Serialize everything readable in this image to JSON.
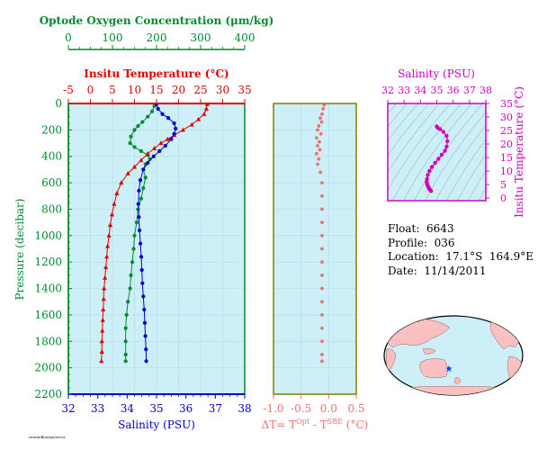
{
  "info": {
    "float": "Float:  6643",
    "profile": "Profile:  036",
    "location": "Location:  17.1°S  164.9°E",
    "date": "Date:  11/14/2011"
  },
  "colors": {
    "oxygen": "#008a2e",
    "temperature": "#e00000",
    "salinity": "#0000d0",
    "delta_t": "#f07070",
    "ts_plot": "#d000c0",
    "panel_bg": "#cdeff8",
    "pressure_axis": "#008a2e",
    "delta_axis": "#808000"
  },
  "chart_data": [
    {
      "type": "line",
      "name": "profile",
      "xlabel_oxygen": "Optode Oxygen Concentration (μm/kg)",
      "xlabel_temperature": "Insitu Temperature (°C)",
      "xlabel_salinity": "Salinity (PSU)",
      "ylabel": "Pressure (decibar)",
      "ylim": [
        2200,
        0
      ],
      "yticks": [
        0,
        200,
        400,
        600,
        800,
        1000,
        1200,
        1400,
        1600,
        1800,
        2000,
        2200
      ],
      "oxygen_xlim": [
        0,
        400
      ],
      "oxygen_ticks": [
        0,
        100,
        200,
        300,
        400
      ],
      "temp_xlim": [
        -5,
        35
      ],
      "temp_ticks": [
        -5,
        0,
        5,
        10,
        15,
        20,
        25,
        30,
        35
      ],
      "sal_xlim": [
        32,
        38
      ],
      "sal_ticks": [
        32,
        33,
        34,
        35,
        36,
        37,
        38
      ],
      "series": [
        {
          "name": "Oxygen",
          "axis": "oxygen",
          "marker": "dot",
          "points": [
            [
              195,
              20
            ],
            [
              190,
              60
            ],
            [
              180,
              100
            ],
            [
              168,
              140
            ],
            [
              158,
              170
            ],
            [
              150,
              200
            ],
            [
              142,
              250
            ],
            [
              140,
              300
            ],
            [
              150,
              330
            ],
            [
              165,
              360
            ],
            [
              180,
              390
            ],
            [
              185,
              420
            ],
            [
              175,
              460
            ],
            [
              170,
              500
            ],
            [
              175,
              560
            ],
            [
              170,
              640
            ],
            [
              165,
              720
            ],
            [
              158,
              800
            ],
            [
              155,
              900
            ],
            [
              150,
              1000
            ],
            [
              148,
              1100
            ],
            [
              145,
              1200
            ],
            [
              142,
              1300
            ],
            [
              140,
              1400
            ],
            [
              135,
              1500
            ],
            [
              132,
              1600
            ],
            [
              130,
              1700
            ],
            [
              130,
              1800
            ],
            [
              130,
              1900
            ],
            [
              130,
              1950
            ]
          ]
        },
        {
          "name": "Temperature",
          "axis": "temperature",
          "marker": "triangle",
          "points": [
            [
              26.5,
              5
            ],
            [
              26.3,
              40
            ],
            [
              25.8,
              80
            ],
            [
              24.5,
              120
            ],
            [
              23.0,
              160
            ],
            [
              21.0,
              200
            ],
            [
              19.0,
              240
            ],
            [
              17.5,
              270
            ],
            [
              16.0,
              300
            ],
            [
              14.5,
              340
            ],
            [
              13.0,
              380
            ],
            [
              11.5,
              430
            ],
            [
              10.0,
              480
            ],
            [
              8.5,
              530
            ],
            [
              7.0,
              600
            ],
            [
              6.0,
              680
            ],
            [
              5.4,
              760
            ],
            [
              4.9,
              840
            ],
            [
              4.5,
              920
            ],
            [
              4.2,
              1000
            ],
            [
              3.9,
              1080
            ],
            [
              3.7,
              1160
            ],
            [
              3.5,
              1240
            ],
            [
              3.3,
              1320
            ],
            [
              3.1,
              1400
            ],
            [
              3.0,
              1480
            ],
            [
              2.9,
              1560
            ],
            [
              2.8,
              1640
            ],
            [
              2.7,
              1720
            ],
            [
              2.6,
              1800
            ],
            [
              2.6,
              1880
            ],
            [
              2.5,
              1950
            ]
          ]
        },
        {
          "name": "Salinity",
          "axis": "salinity",
          "marker": "dot",
          "points": [
            [
              35.0,
              5
            ],
            [
              35.05,
              40
            ],
            [
              35.2,
              80
            ],
            [
              35.4,
              110
            ],
            [
              35.6,
              150
            ],
            [
              35.65,
              190
            ],
            [
              35.6,
              230
            ],
            [
              35.5,
              270
            ],
            [
              35.3,
              320
            ],
            [
              35.1,
              360
            ],
            [
              34.9,
              400
            ],
            [
              34.7,
              450
            ],
            [
              34.55,
              500
            ],
            [
              34.45,
              580
            ],
            [
              34.4,
              660
            ],
            [
              34.38,
              760
            ],
            [
              34.4,
              860
            ],
            [
              34.42,
              960
            ],
            [
              34.45,
              1060
            ],
            [
              34.48,
              1160
            ],
            [
              34.5,
              1260
            ],
            [
              34.52,
              1360
            ],
            [
              34.55,
              1460
            ],
            [
              34.58,
              1560
            ],
            [
              34.6,
              1660
            ],
            [
              34.62,
              1760
            ],
            [
              34.64,
              1860
            ],
            [
              34.65,
              1950
            ]
          ]
        }
      ]
    },
    {
      "type": "scatter",
      "name": "delta_t",
      "xlabel": "ΔT= T^Opt - T^SBE (°C)",
      "xlim": [
        -1.0,
        0.5
      ],
      "xticks": [
        -1.0,
        -0.5,
        0.0,
        0.5
      ],
      "xtick_labels": [
        "-1.0",
        "-0.5",
        "0.0",
        "0.5"
      ],
      "ylim": [
        2200,
        0
      ],
      "series": [
        {
          "name": "ΔT",
          "points": [
            [
              -0.08,
              10
            ],
            [
              -0.1,
              40
            ],
            [
              -0.12,
              80
            ],
            [
              -0.15,
              110
            ],
            [
              -0.13,
              140
            ],
            [
              -0.18,
              170
            ],
            [
              -0.2,
              200
            ],
            [
              -0.14,
              230
            ],
            [
              -0.22,
              260
            ],
            [
              -0.17,
              290
            ],
            [
              -0.2,
              320
            ],
            [
              -0.16,
              350
            ],
            [
              -0.22,
              380
            ],
            [
              -0.18,
              420
            ],
            [
              -0.2,
              460
            ],
            [
              -0.15,
              520
            ],
            [
              -0.12,
              600
            ],
            [
              -0.12,
              700
            ],
            [
              -0.12,
              800
            ],
            [
              -0.12,
              900
            ],
            [
              -0.12,
              1000
            ],
            [
              -0.12,
              1100
            ],
            [
              -0.12,
              1200
            ],
            [
              -0.12,
              1300
            ],
            [
              -0.12,
              1400
            ],
            [
              -0.12,
              1500
            ],
            [
              -0.12,
              1600
            ],
            [
              -0.12,
              1700
            ],
            [
              -0.12,
              1800
            ],
            [
              -0.12,
              1900
            ],
            [
              -0.12,
              1950
            ]
          ]
        }
      ]
    },
    {
      "type": "scatter",
      "name": "ts",
      "xlabel": "Salinity (PSU)",
      "ylabel": "Insitu Temperature (°C)",
      "xlim": [
        32,
        38
      ],
      "ylim": [
        -1,
        35
      ],
      "xticks": [
        32,
        33,
        34,
        35,
        36,
        37,
        38
      ],
      "yticks": [
        0,
        5,
        10,
        15,
        20,
        25,
        30,
        35
      ],
      "series": [
        {
          "name": "T-S",
          "points": [
            [
              35.0,
              26.5
            ],
            [
              35.05,
              26.0
            ],
            [
              35.2,
              25.5
            ],
            [
              35.4,
              24.5
            ],
            [
              35.6,
              23.0
            ],
            [
              35.65,
              21.0
            ],
            [
              35.6,
              19.0
            ],
            [
              35.5,
              17.5
            ],
            [
              35.3,
              16.0
            ],
            [
              35.1,
              14.5
            ],
            [
              34.9,
              13.0
            ],
            [
              34.7,
              11.5
            ],
            [
              34.55,
              10.0
            ],
            [
              34.45,
              8.5
            ],
            [
              34.4,
              7.0
            ],
            [
              34.38,
              6.0
            ],
            [
              34.4,
              5.4
            ],
            [
              34.42,
              4.9
            ],
            [
              34.45,
              4.5
            ],
            [
              34.48,
              4.2
            ],
            [
              34.5,
              3.9
            ],
            [
              34.52,
              3.6
            ],
            [
              34.55,
              3.3
            ],
            [
              34.6,
              3.0
            ],
            [
              34.65,
              2.6
            ]
          ]
        }
      ]
    }
  ],
  "misc": {
    "footer_mark": "ruaraidh/argo/arvor"
  }
}
